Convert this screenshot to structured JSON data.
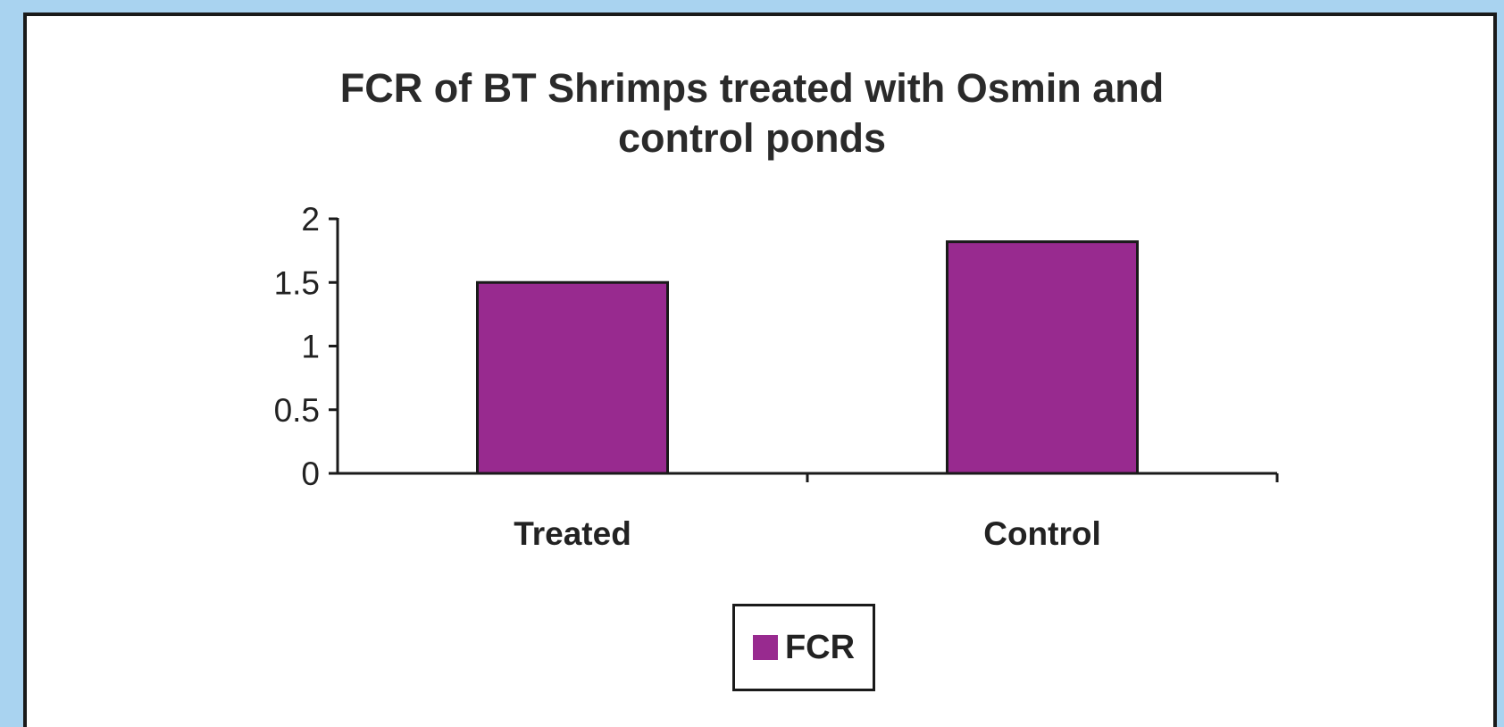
{
  "chart_data": {
    "type": "bar",
    "title_lines": [
      "FCR of BT Shrimps treated with Osmin and",
      "control ponds"
    ],
    "categories": [
      "Treated",
      "Control"
    ],
    "series": [
      {
        "name": "FCR",
        "values": [
          1.5,
          1.82
        ]
      }
    ],
    "ylim": [
      0,
      2
    ],
    "yticks": [
      0,
      0.5,
      1,
      1.5,
      2
    ],
    "ytick_labels": [
      "0",
      "0.5",
      "1",
      "1.5",
      "2"
    ],
    "xlabel": "",
    "ylabel": "",
    "grid": false,
    "legend_position": "bottom",
    "bar_color": "#982a8f"
  }
}
